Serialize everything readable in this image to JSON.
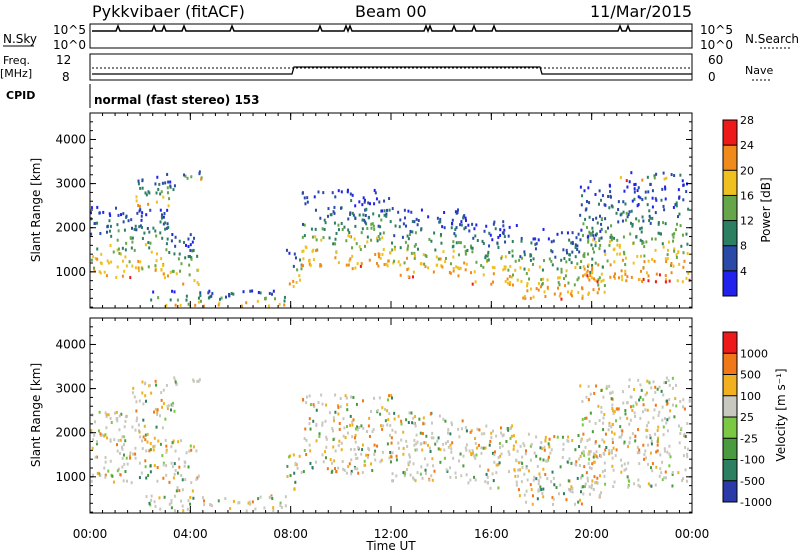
{
  "header": {
    "radar": "Pykkvibaer (fitACF)",
    "beam": "Beam 00",
    "date": "11/Mar/2015"
  },
  "status_panels": {
    "nsky_label": "N.Sky",
    "nsky_ticks": [
      "10^5",
      "10^0"
    ],
    "nsearch_label": "N.Search",
    "freq_label": "Freq.",
    "freq_unit": "[MHz]",
    "freq_ticks": [
      "12",
      "8"
    ],
    "nave_label": "Nave",
    "nave_ticks": [
      "60",
      "0"
    ],
    "cpid_label": "CPID",
    "cpid_value": "normal (fast stereo) 153"
  },
  "chart_data": [
    {
      "type": "heatmap",
      "name": "power",
      "x_ticks": [
        "00:00",
        "04:00",
        "08:00",
        "12:00",
        "16:00",
        "20:00",
        "00:00"
      ],
      "xlim_hours": [
        0,
        24
      ],
      "ylabel": "Slant Range [km]",
      "y_ticks": [
        1000,
        2000,
        3000,
        4000
      ],
      "ylim": [
        180,
        4600
      ],
      "colorbar_label": "Power [dB]",
      "colorbar_ticks": [
        "4",
        "8",
        "12",
        "16",
        "20",
        "24",
        "28"
      ],
      "colorbar_colors": [
        "#2222ee",
        "#2a4aa8",
        "#2d7f62",
        "#66a64a",
        "#f0c020",
        "#f08a1a",
        "#ee1a1a"
      ]
    },
    {
      "type": "heatmap",
      "name": "velocity",
      "x_ticks": [
        "00:00",
        "04:00",
        "08:00",
        "12:00",
        "16:00",
        "20:00",
        "00:00"
      ],
      "xlim_hours": [
        0,
        24
      ],
      "xlabel": "Time UT",
      "ylabel": "Slant Range [km]",
      "y_ticks": [
        1000,
        2000,
        3000,
        4000
      ],
      "ylim": [
        180,
        4600
      ],
      "colorbar_label": "Velocity [m s⁻¹]",
      "colorbar_ticks": [
        "1000",
        "500",
        "100",
        "25",
        "-25",
        "-100",
        "-500",
        "-1000"
      ],
      "colorbar_colors": [
        "#2a3aa8",
        "#2d7f62",
        "#4a9a40",
        "#7ac843",
        "#c8c8c0",
        "#f0b020",
        "#f07818",
        "#ee1a1a"
      ]
    }
  ]
}
